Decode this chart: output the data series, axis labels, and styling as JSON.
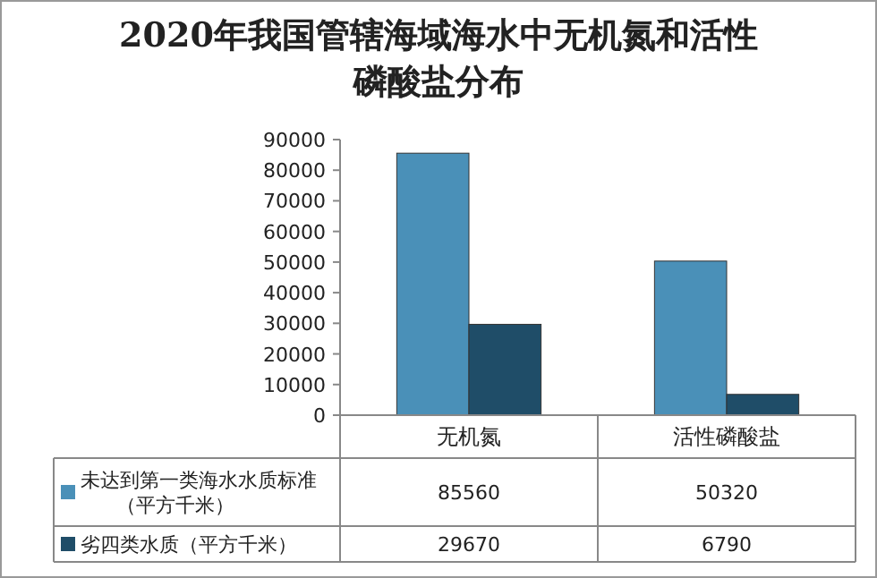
{
  "chart_data": {
    "type": "bar",
    "title": "2020年我国管辖海域海水中无机氮和活性磷酸盐分布",
    "categories": [
      "无机氮",
      "活性磷酸盐"
    ],
    "series": [
      {
        "name": "未达到第一类海水水质标准（平方千米）",
        "color": "#4a90b8",
        "values": [
          85560,
          50320
        ]
      },
      {
        "name": "劣四类水质（平方千米）",
        "color": "#1f4d68",
        "values": [
          29670,
          6790
        ]
      }
    ],
    "ylim": [
      0,
      90000
    ],
    "yticks": [
      0,
      10000,
      20000,
      30000,
      40000,
      50000,
      60000,
      70000,
      80000,
      90000
    ],
    "data_labels": true,
    "legend": "bottom"
  }
}
